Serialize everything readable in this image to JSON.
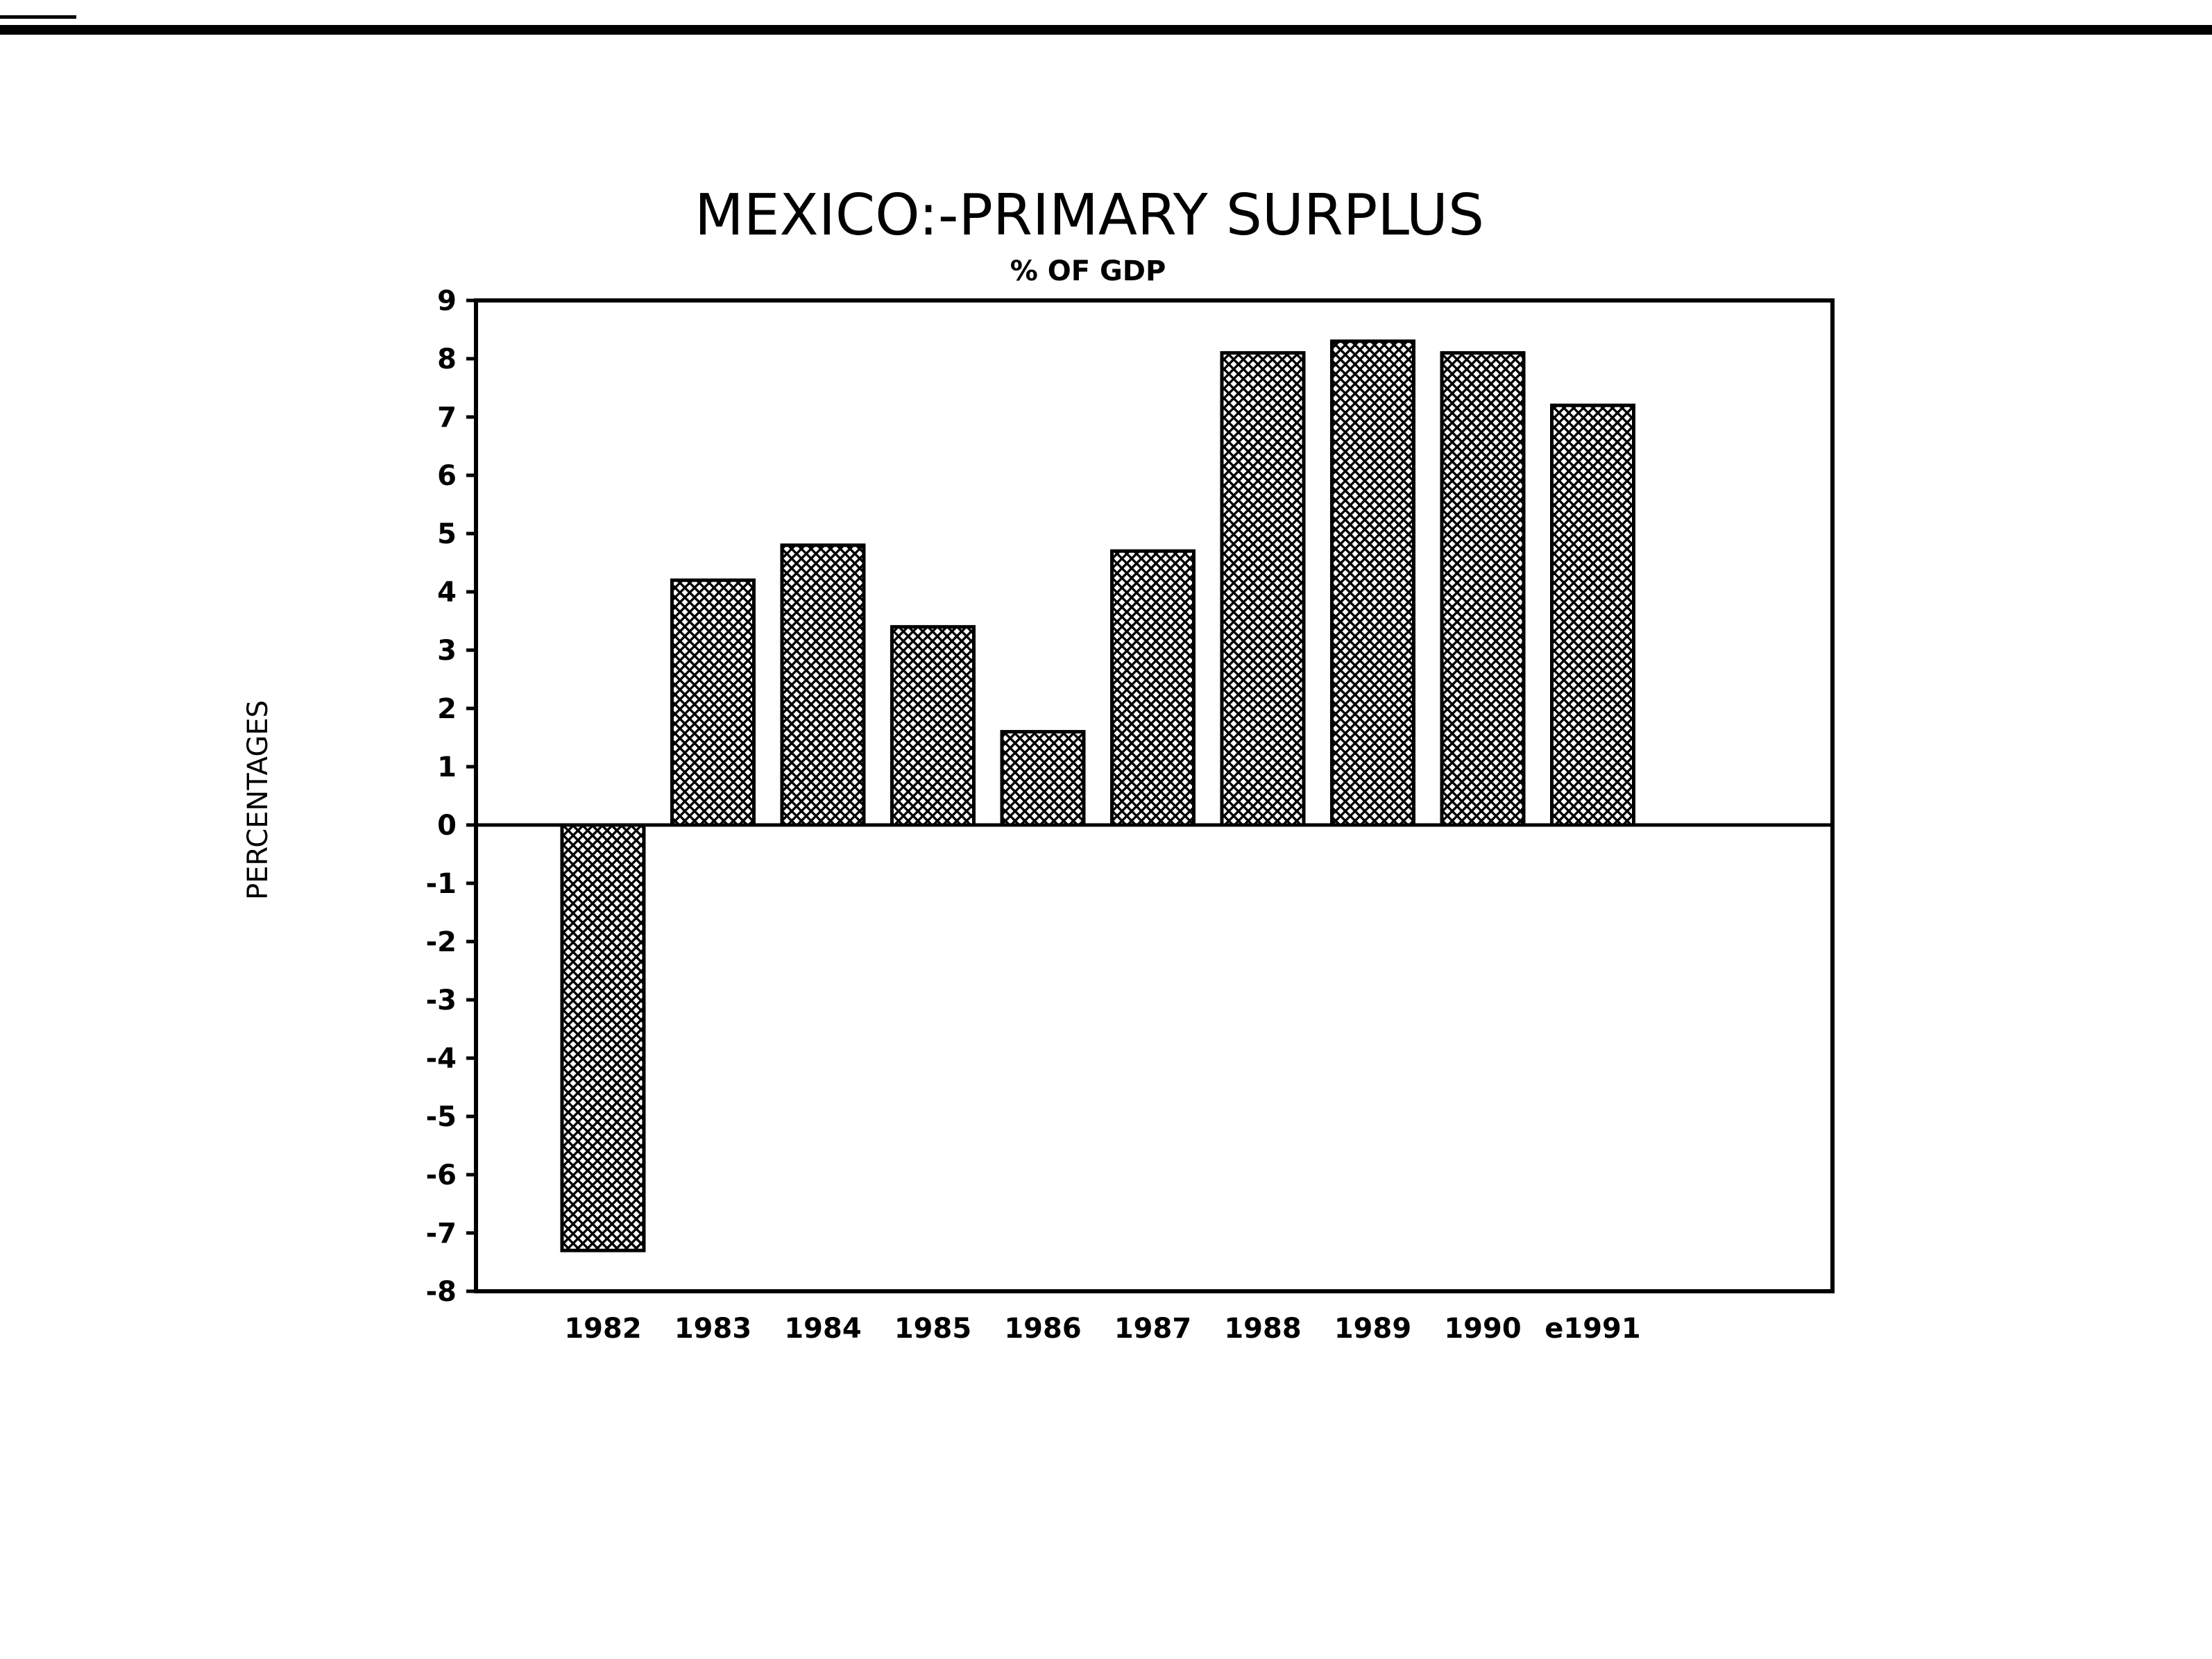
{
  "chart_data": {
    "type": "bar",
    "title": "MEXICO:-PRIMARY SURPLUS",
    "subtitle": "% OF GDP",
    "ylabel": "PERCENTAGES",
    "xlabel": "",
    "categories": [
      "1982",
      "1983",
      "1984",
      "1985",
      "1986",
      "1987",
      "1988",
      "1989",
      "1990",
      "e1991"
    ],
    "values": [
      -7.3,
      4.2,
      4.8,
      3.4,
      1.6,
      4.7,
      8.1,
      8.3,
      8.1,
      7.2
    ],
    "ylim": [
      -8,
      9
    ],
    "yticks": [
      "9",
      "8",
      "7",
      "6",
      "5",
      "4",
      "3",
      "2",
      "1",
      "0",
      "-1",
      "-2",
      "-3",
      "-4",
      "-5",
      "-6",
      "-7",
      "-8"
    ],
    "grid": false,
    "legend": "none",
    "bar_fill": "crosshatch",
    "colors": {
      "ink": "#000000",
      "background": "#ffffff"
    }
  }
}
